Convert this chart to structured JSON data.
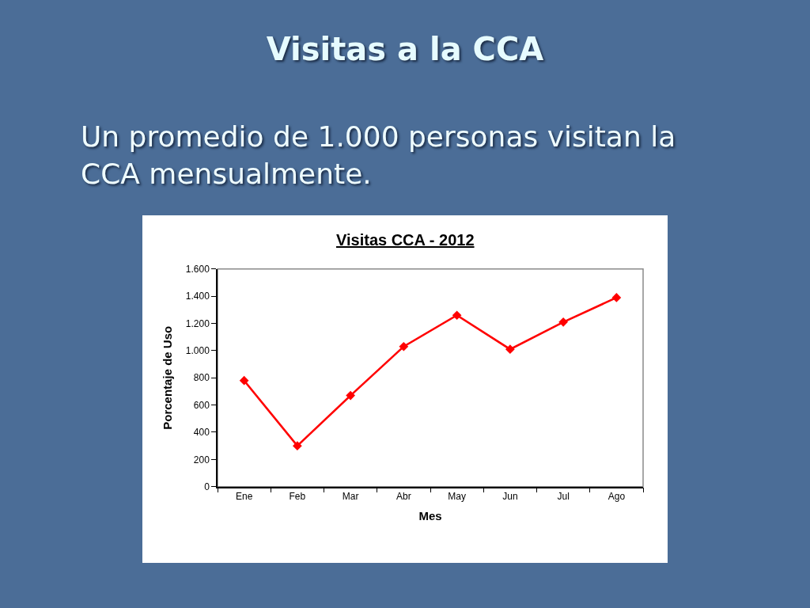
{
  "chart_data": {
    "type": "line",
    "title": "Visitas a la CCA",
    "subtitle": "Un promedio de 1.000 personas visitan la CCA mensualmente.",
    "annotations": [
      "Visitas CCA - 2012"
    ],
    "xlabel": "Mes",
    "ylabel": "Porcentaje de Uso",
    "categories": [
      "Ene",
      "Feb",
      "Mar",
      "Abr",
      "May",
      "Jun",
      "Jul",
      "Ago"
    ],
    "series": [
      {
        "color": "#ff0000",
        "values": [
          780,
          300,
          670,
          1030,
          1260,
          1010,
          1210,
          1390
        ]
      }
    ],
    "ylim": [
      0,
      1600
    ],
    "yticks": [
      0,
      200,
      400,
      600,
      800,
      {
        "value": 1000,
        "label": "1.000"
      },
      {
        "value": 1200,
        "label": "1.200"
      },
      {
        "value": 1400,
        "label": "1.400"
      },
      {
        "value": 1600,
        "label": "1.600"
      }
    ],
    "marker": "diamond"
  }
}
